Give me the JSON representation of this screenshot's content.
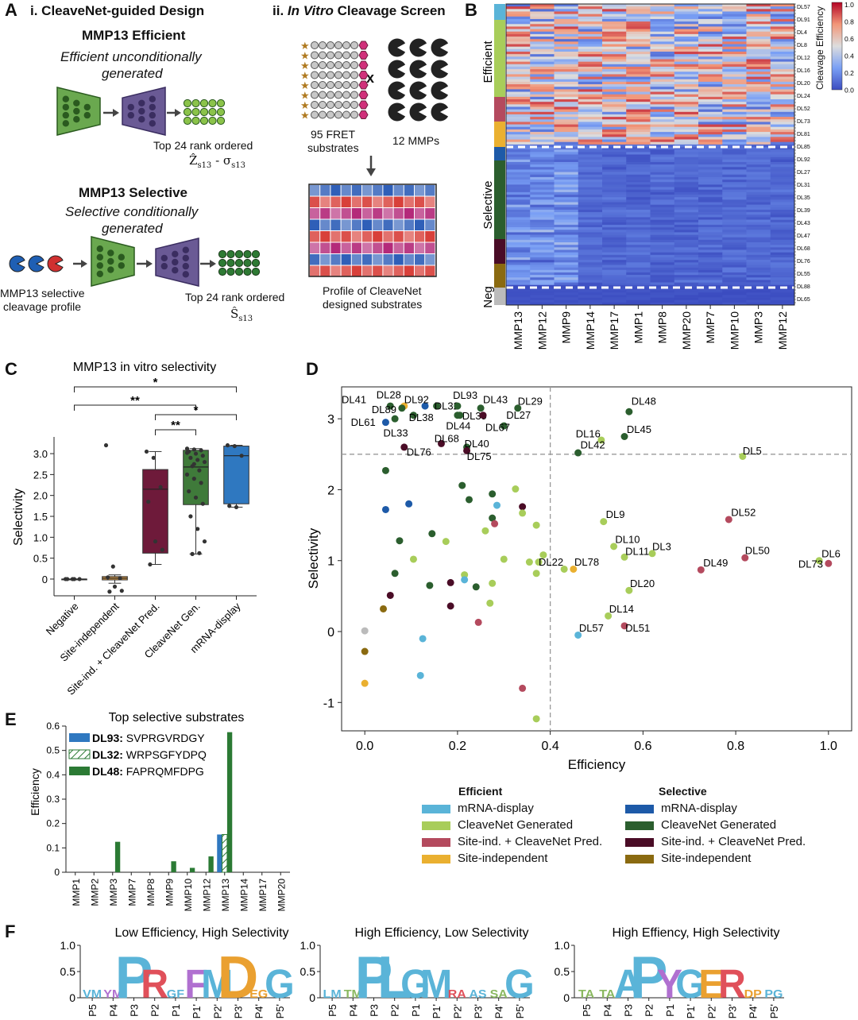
{
  "panels": {
    "A": "A",
    "B": "B",
    "C": "C",
    "D": "D",
    "E": "E",
    "F": "F"
  },
  "panel_a": {
    "title_i_prefix": "i. CleaveNet-guided Design",
    "title_ii_prefix": "ii.",
    "title_ii_italic": "In Vitro",
    "title_ii_suffix": "Cleavage Screen",
    "efficient_heading": "MMP13 Efficient",
    "efficient_sub_1": "Efficient unconditionally",
    "efficient_sub_2": "generated",
    "efficient_rank": "Top 24 rank ordered",
    "efficient_formula": "Ẑ",
    "efficient_formula_sub": "s13",
    "efficient_formula_mid": "- σ",
    "efficient_formula_sub2": "s13",
    "selective_heading": "MMP13 Selective",
    "selective_sub_1": "Selective conditionally",
    "selective_sub_2": "generated",
    "selective_profile_1": "MMP13 selective",
    "selective_profile_2": "cleavage profile",
    "selective_rank": "Top 24 rank ordered",
    "selective_formula": "Ŝ",
    "selective_formula_sub": "s13",
    "fret_1": "95 FRET",
    "fret_2": "substrates",
    "x_sign": "x",
    "mmps": "12 MMPs",
    "profile_1": "Profile of CleaveNet",
    "profile_2": "designed substrates"
  },
  "panel_b": {
    "group_labels": [
      "Efficient",
      "Selective",
      "Neg"
    ],
    "row_labels": [
      "DL57",
      "DL91",
      "DL4",
      "DL8",
      "DL12",
      "DL16",
      "DL20",
      "DL24",
      "DL52",
      "DL73",
      "DL81",
      "DL85",
      "DL92",
      "DL27",
      "DL31",
      "DL35",
      "DL39",
      "DL43",
      "DL47",
      "DL68",
      "DL76",
      "DL55",
      "DL88",
      "DL65"
    ],
    "col_labels": [
      "MMP13",
      "MMP12",
      "MMP9",
      "MMP14",
      "MMP17",
      "MMP1",
      "MMP8",
      "MMP20",
      "MMP7",
      "MMP10",
      "MMP3",
      "MMP12"
    ],
    "colorbar_title": "Cleavage Efficiency",
    "colorbar_ticks": [
      "1.0",
      "0.8",
      "0.6",
      "0.4",
      "0.2",
      "0.0"
    ]
  },
  "chart_data": [
    {
      "type": "box",
      "id": "C",
      "title": "MMP13 in vitro selectivity",
      "ylabel": "Selectivity",
      "categories": [
        "Negative",
        "Site-independent",
        "Site-ind. + CleaveNet Pred.",
        "CleaveNet Gen.",
        "mRNA-display"
      ],
      "colors": [
        "#ffffff",
        "#e8a64a",
        "#6e1a3a",
        "#3f7a3a",
        "#2f78c0"
      ],
      "boxes": [
        {
          "q1": 0,
          "median": 0,
          "q3": 0,
          "lo": 0,
          "hi": 0
        },
        {
          "q1": -0.02,
          "median": 0.02,
          "q3": 0.06,
          "lo": -0.1,
          "hi": 0.1
        },
        {
          "q1": 0.62,
          "median": 2.15,
          "q3": 2.62,
          "lo": 0.35,
          "hi": 3.05
        },
        {
          "q1": 1.78,
          "median": 2.68,
          "q3": 3.08,
          "lo": 0.6,
          "hi": 3.12
        },
        {
          "q1": 1.8,
          "median": 2.95,
          "q3": 3.18,
          "lo": 1.72,
          "hi": 3.2
        }
      ],
      "points": [
        [
          0,
          0,
          0,
          0,
          0
        ],
        [
          3.2,
          0.3,
          0.02,
          0.04,
          -0.18,
          -0.28,
          -0.3
        ],
        [
          3.05,
          2.9,
          2.2,
          1.85,
          0.9,
          0.7,
          0.35
        ],
        [
          3.12,
          3.1,
          3.08,
          3.05,
          3.0,
          2.95,
          2.9,
          2.85,
          2.8,
          2.7,
          2.6,
          2.5,
          2.4,
          2.3,
          2.1,
          1.95,
          1.8,
          1.5,
          1.2,
          0.9,
          0.6,
          0.62,
          3.02,
          2.75
        ],
        [
          3.2,
          3.18,
          2.95,
          1.75,
          1.72
        ]
      ],
      "yticks": [
        "0",
        "0.5",
        "1.0",
        "1.5",
        "2.0",
        "2.5",
        "3.0"
      ],
      "ylim": [
        -0.4,
        3.4
      ],
      "significance": [
        "*",
        "**",
        "*",
        "**"
      ]
    },
    {
      "type": "scatter",
      "id": "D",
      "xlabel": "Efficiency",
      "ylabel": "Selectivity",
      "xlim": [
        -0.05,
        1.05
      ],
      "ylim": [
        -1.4,
        3.45
      ],
      "xticks": [
        "0.0",
        "0.2",
        "0.4",
        "0.6",
        "0.8",
        "1.0"
      ],
      "yticks": [
        "-1",
        "0",
        "1",
        "2",
        "3"
      ],
      "thresholds": {
        "x": 0.4,
        "y": 2.5
      },
      "legend_efficient_title": "Efficient",
      "legend_selective_title": "Selective",
      "legend_efficient": [
        {
          "label": "mRNA-display",
          "color": "#5ab4d8"
        },
        {
          "label": "CleaveNet Generated",
          "color": "#a8cd5a"
        },
        {
          "label": "Site-ind. + CleaveNet Pred.",
          "color": "#b44a5e"
        },
        {
          "label": "Site-independent",
          "color": "#eab030"
        }
      ],
      "legend_selective": [
        {
          "label": "mRNA-display",
          "color": "#1d5aa8"
        },
        {
          "label": "CleaveNet Generated",
          "color": "#2b5e2e"
        },
        {
          "label": "Site-ind. + CleaveNet Pred.",
          "color": "#4a0c26"
        },
        {
          "label": "Site-independent",
          "color": "#8a6a10"
        }
      ],
      "labeled_points": [
        {
          "label": "DL41",
          "x": 0.055,
          "y": 3.18,
          "c": "#2b5e2e",
          "lx": -0.05,
          "ly": 3.22
        },
        {
          "label": "DL28",
          "x": 0.085,
          "y": 3.18,
          "c": "#eab030",
          "lx": 0.025,
          "ly": 3.29
        },
        {
          "label": "DL89",
          "x": 0.08,
          "y": 3.15,
          "c": "#2b5e2e",
          "lx": 0.015,
          "ly": 3.08
        },
        {
          "label": "DL92",
          "x": 0.13,
          "y": 3.18,
          "c": "#1d5aa8",
          "lx": 0.085,
          "ly": 3.22
        },
        {
          "label": "DL32",
          "x": 0.155,
          "y": 3.18,
          "c": "#2b5e2e",
          "lx": 0.15,
          "ly": 3.13
        },
        {
          "label": "DL93",
          "x": 0.2,
          "y": 3.18,
          "c": "#2b5e2e",
          "lx": 0.19,
          "ly": 3.28
        },
        {
          "label": "DL43",
          "x": 0.25,
          "y": 3.15,
          "c": "#2b5e2e",
          "lx": 0.255,
          "ly": 3.22
        },
        {
          "label": "DL29",
          "x": 0.33,
          "y": 3.15,
          "c": "#2b5e2e",
          "lx": 0.33,
          "ly": 3.2
        },
        {
          "label": "DL61",
          "x": 0.045,
          "y": 2.95,
          "c": "#1d5aa8",
          "lx": -0.03,
          "ly": 2.9
        },
        {
          "label": "DL38",
          "x": 0.105,
          "y": 3.05,
          "c": "#2b5e2e",
          "lx": 0.095,
          "ly": 2.97
        },
        {
          "label": "DL39",
          "x": 0.2,
          "y": 3.05,
          "c": "#2b5e2e",
          "lx": 0.21,
          "ly": 2.99
        },
        {
          "label": "DL27",
          "x": 0.3,
          "y": 2.9,
          "c": "#2b5e2e",
          "lx": 0.305,
          "ly": 3.0
        },
        {
          "label": "DL33",
          "x": 0.065,
          "y": 3.0,
          "c": "#2b5e2e",
          "lx": 0.04,
          "ly": 2.75
        },
        {
          "label": "DL44",
          "x": 0.205,
          "y": 3.05,
          "c": "#2b5e2e",
          "lx": 0.175,
          "ly": 2.85
        },
        {
          "label": "DL67",
          "x": 0.255,
          "y": 3.05,
          "c": "#4a0c26",
          "lx": 0.26,
          "ly": 2.83
        },
        {
          "label": "DL68",
          "x": 0.165,
          "y": 2.65,
          "c": "#4a0c26",
          "lx": 0.15,
          "ly": 2.67
        },
        {
          "label": "DL40",
          "x": 0.22,
          "y": 2.6,
          "c": "#2b5e2e",
          "lx": 0.215,
          "ly": 2.6
        },
        {
          "label": "DL76",
          "x": 0.085,
          "y": 2.6,
          "c": "#4a0c26",
          "lx": 0.09,
          "ly": 2.48
        },
        {
          "label": "DL75",
          "x": 0.22,
          "y": 2.55,
          "c": "#4a0c26",
          "lx": 0.22,
          "ly": 2.42
        },
        {
          "label": "DL48",
          "x": 0.57,
          "y": 3.1,
          "c": "#2b5e2e",
          "lx": 0.575,
          "ly": 3.2
        },
        {
          "label": "DL45",
          "x": 0.56,
          "y": 2.75,
          "c": "#2b5e2e",
          "lx": 0.565,
          "ly": 2.8
        },
        {
          "label": "DL16",
          "x": 0.51,
          "y": 2.7,
          "c": "#a8cd5a",
          "lx": 0.455,
          "ly": 2.74
        },
        {
          "label": "DL42",
          "x": 0.46,
          "y": 2.52,
          "c": "#2b5e2e",
          "lx": 0.465,
          "ly": 2.58
        },
        {
          "label": "DL5",
          "x": 0.815,
          "y": 2.47,
          "c": "#a8cd5a",
          "lx": 0.815,
          "ly": 2.5
        },
        {
          "label": "DL52",
          "x": 0.785,
          "y": 1.58,
          "c": "#b44a5e",
          "lx": 0.79,
          "ly": 1.63
        },
        {
          "label": "DL9",
          "x": 0.515,
          "y": 1.55,
          "c": "#a8cd5a",
          "lx": 0.52,
          "ly": 1.6
        },
        {
          "label": "DL10",
          "x": 0.537,
          "y": 1.2,
          "c": "#a8cd5a",
          "lx": 0.54,
          "ly": 1.25
        },
        {
          "label": "DL3",
          "x": 0.62,
          "y": 1.1,
          "c": "#a8cd5a",
          "lx": 0.62,
          "ly": 1.15
        },
        {
          "label": "DL11",
          "x": 0.56,
          "y": 1.05,
          "c": "#a8cd5a",
          "lx": 0.562,
          "ly": 1.08
        },
        {
          "label": "DL50",
          "x": 0.82,
          "y": 1.04,
          "c": "#b44a5e",
          "lx": 0.82,
          "ly": 1.09
        },
        {
          "label": "DL6",
          "x": 0.98,
          "y": 1.0,
          "c": "#a8cd5a",
          "lx": 0.985,
          "ly": 1.05
        },
        {
          "label": "DL73",
          "x": 1.0,
          "y": 0.96,
          "c": "#b44a5e",
          "lx": 0.935,
          "ly": 0.9
        },
        {
          "label": "DL49",
          "x": 0.725,
          "y": 0.87,
          "c": "#b44a5e",
          "lx": 0.73,
          "ly": 0.92
        },
        {
          "label": "DL22",
          "x": 0.43,
          "y": 0.88,
          "c": "#a8cd5a",
          "lx": 0.375,
          "ly": 0.93
        },
        {
          "label": "DL78",
          "x": 0.45,
          "y": 0.88,
          "c": "#eab030",
          "lx": 0.452,
          "ly": 0.93
        },
        {
          "label": "DL20",
          "x": 0.57,
          "y": 0.58,
          "c": "#a8cd5a",
          "lx": 0.572,
          "ly": 0.63
        },
        {
          "label": "DL14",
          "x": 0.525,
          "y": 0.22,
          "c": "#a8cd5a",
          "lx": 0.527,
          "ly": 0.27
        },
        {
          "label": "DL57",
          "x": 0.46,
          "y": -0.05,
          "c": "#5ab4d8",
          "lx": 0.462,
          "ly": 0.0
        },
        {
          "label": "DL51",
          "x": 0.56,
          "y": 0.08,
          "c": "#b44a5e",
          "lx": 0.562,
          "ly": 0.0
        }
      ],
      "points": [
        {
          "x": 0.045,
          "y": 2.27,
          "c": "#2b5e2e"
        },
        {
          "x": 0.21,
          "y": 2.06,
          "c": "#2b5e2e"
        },
        {
          "x": 0.275,
          "y": 1.94,
          "c": "#2b5e2e"
        },
        {
          "x": 0.325,
          "y": 2.01,
          "c": "#a8cd5a"
        },
        {
          "x": 0.045,
          "y": 1.72,
          "c": "#1d5aa8"
        },
        {
          "x": 0.095,
          "y": 1.8,
          "c": "#1d5aa8"
        },
        {
          "x": 0.225,
          "y": 1.86,
          "c": "#2b5e2e"
        },
        {
          "x": 0.285,
          "y": 1.78,
          "c": "#5ab4d8"
        },
        {
          "x": 0.34,
          "y": 1.76,
          "c": "#4a0c26"
        },
        {
          "x": 0.34,
          "y": 1.67,
          "c": "#a8cd5a"
        },
        {
          "x": 0.275,
          "y": 1.6,
          "c": "#2b5e2e"
        },
        {
          "x": 0.28,
          "y": 1.52,
          "c": "#b44a5e"
        },
        {
          "x": 0.37,
          "y": 1.5,
          "c": "#a8cd5a"
        },
        {
          "x": 0.26,
          "y": 1.42,
          "c": "#a8cd5a"
        },
        {
          "x": 0.145,
          "y": 1.38,
          "c": "#2b5e2e"
        },
        {
          "x": 0.075,
          "y": 1.28,
          "c": "#2b5e2e"
        },
        {
          "x": 0.175,
          "y": 1.27,
          "c": "#a8cd5a"
        },
        {
          "x": 0.385,
          "y": 1.08,
          "c": "#a8cd5a"
        },
        {
          "x": 0.105,
          "y": 1.02,
          "c": "#a8cd5a"
        },
        {
          "x": 0.3,
          "y": 1.02,
          "c": "#a8cd5a"
        },
        {
          "x": 0.355,
          "y": 0.98,
          "c": "#a8cd5a"
        },
        {
          "x": 0.375,
          "y": 0.98,
          "c": "#a8cd5a"
        },
        {
          "x": 0.065,
          "y": 0.82,
          "c": "#2b5e2e"
        },
        {
          "x": 0.37,
          "y": 0.82,
          "c": "#a8cd5a"
        },
        {
          "x": 0.215,
          "y": 0.8,
          "c": "#a8cd5a"
        },
        {
          "x": 0.215,
          "y": 0.73,
          "c": "#5ab4d8"
        },
        {
          "x": 0.14,
          "y": 0.65,
          "c": "#2b5e2e"
        },
        {
          "x": 0.24,
          "y": 0.63,
          "c": "#2b5e2e"
        },
        {
          "x": 0.275,
          "y": 0.68,
          "c": "#a8cd5a"
        },
        {
          "x": 0.185,
          "y": 0.69,
          "c": "#4a0c26"
        },
        {
          "x": 0.055,
          "y": 0.51,
          "c": "#4a0c26"
        },
        {
          "x": 0.27,
          "y": 0.4,
          "c": "#a8cd5a"
        },
        {
          "x": 0.185,
          "y": 0.36,
          "c": "#4a0c26"
        },
        {
          "x": 0.04,
          "y": 0.32,
          "c": "#8a6a10"
        },
        {
          "x": 0.245,
          "y": 0.13,
          "c": "#b44a5e"
        },
        {
          "x": 0.0,
          "y": 0.01,
          "c": "#bbbbbb"
        },
        {
          "x": 0.125,
          "y": -0.1,
          "c": "#5ab4d8"
        },
        {
          "x": 0.0,
          "y": -0.28,
          "c": "#8a6a10"
        },
        {
          "x": 0.12,
          "y": -0.62,
          "c": "#5ab4d8"
        },
        {
          "x": 0.0,
          "y": -0.73,
          "c": "#eab030"
        },
        {
          "x": 0.34,
          "y": -0.8,
          "c": "#b44a5e"
        },
        {
          "x": 0.37,
          "y": -1.23,
          "c": "#a8cd5a"
        }
      ]
    },
    {
      "type": "bar",
      "id": "E",
      "title": "Top selective substrates",
      "ylabel": "Efficiency",
      "categories": [
        "MMP1",
        "MMP2",
        "MMP3",
        "MMP7",
        "MMP8",
        "MMP9",
        "MMP10",
        "MMP12",
        "MMP13",
        "MMP14",
        "MMP17",
        "MMP20"
      ],
      "ylim": [
        0,
        0.6
      ],
      "yticks": [
        "0",
        "0.1",
        "0.2",
        "0.3",
        "0.4",
        "0.5",
        "0.6"
      ],
      "series": [
        {
          "name": "DL93",
          "seq": "SVPRGVRDGY",
          "color": "#2f78c0",
          "style": "solid",
          "values": [
            0,
            0,
            0,
            0,
            0,
            0,
            0,
            0,
            0.155,
            0,
            0,
            0
          ]
        },
        {
          "name": "DL32",
          "seq": "WRPSGFYDPQ",
          "color": "#2b7a34",
          "style": "hatch",
          "values": [
            0,
            0,
            0,
            0,
            0,
            0,
            0,
            0,
            0.155,
            0,
            0,
            0
          ]
        },
        {
          "name": "DL48",
          "seq": "FAPRQMFDPG",
          "color": "#2b7a34",
          "style": "solid",
          "values": [
            0,
            0,
            0.125,
            0,
            0,
            0.045,
            0.018,
            0.065,
            0.575,
            0,
            0,
            0
          ]
        }
      ]
    }
  ],
  "panel_f": {
    "titles": [
      "Low Efficiency, High Selectivity",
      "High Efficiency, Low Selectivity",
      "High Effiency, High Selectivity"
    ],
    "yticks": [
      "1.0",
      "0.5",
      "0"
    ],
    "positions": [
      "P5",
      "P4",
      "P3",
      "P2",
      "P1",
      "P1'",
      "P2'",
      "P3'",
      "P4'",
      "P5'"
    ],
    "logo1": [
      "VM",
      "YM",
      "P",
      "R",
      "GF",
      "F",
      "M",
      "D",
      "EG",
      "G"
    ],
    "logo2": [
      "LM",
      "TM",
      "P",
      "L",
      "G",
      "M",
      "RA",
      "AS",
      "SA",
      "G"
    ],
    "logo3": [
      "TA",
      "TA",
      "A",
      "P",
      "Y",
      "G",
      "E",
      "R",
      "DP",
      "PG"
    ]
  }
}
